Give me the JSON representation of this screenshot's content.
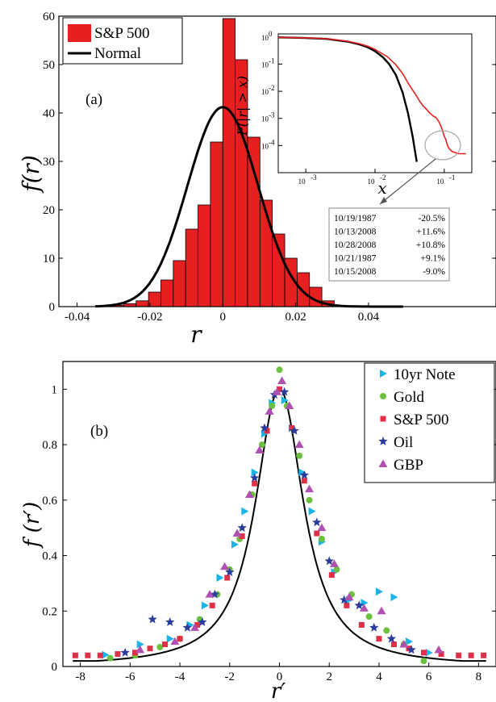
{
  "chart_data": [
    {
      "type": "bar",
      "panel_label": "(a)",
      "xlabel": "r",
      "ylabel": "f(r)",
      "xlim": [
        -0.045,
        0.075
      ],
      "ylim": [
        0,
        60
      ],
      "xticks": [
        "-0.04",
        "-0.02",
        "0",
        "0.02",
        "0.04"
      ],
      "xtick_values": [
        -0.04,
        -0.02,
        0,
        0.02,
        0.04
      ],
      "yticks": [
        "0",
        "10",
        "20",
        "30",
        "40",
        "50",
        "60"
      ],
      "ytick_values": [
        0,
        10,
        20,
        30,
        40,
        50,
        60
      ],
      "bin_width": 0.0034,
      "bins": [
        -0.0306,
        -0.0272,
        -0.0238,
        -0.0204,
        -0.017,
        -0.0136,
        -0.0102,
        -0.0068,
        -0.0034,
        0,
        0.0034,
        0.0068,
        0.0102,
        0.0136,
        0.017,
        0.0204,
        0.0238,
        0.0272
      ],
      "values": [
        0.3,
        0.6,
        1.2,
        3,
        5.5,
        9.5,
        16,
        21,
        34,
        59.5,
        51,
        35,
        22,
        15,
        10,
        7,
        4,
        1.2
      ],
      "normal_curve": {
        "mean": 0,
        "std": 0.0097,
        "peak": 41.2
      },
      "legend": [
        {
          "label": "S&P 500",
          "color": "#e62020",
          "kind": "bar"
        },
        {
          "label": "Normal",
          "color": "#000000",
          "kind": "line"
        }
      ],
      "legend_position": "top-left",
      "colors": {
        "bar": "#e62020",
        "curve": "#000000"
      },
      "inset": {
        "type": "line",
        "xlabel": "x",
        "ylabel": "P(|r| > x)",
        "xscale": "log",
        "yscale": "log",
        "xlim": [
          0.0004,
          0.25
        ],
        "ylim": [
          1e-05,
          1.3
        ],
        "xticks": [
          {
            "base": "10",
            "exp": "-3",
            "value": 0.001
          },
          {
            "base": "10",
            "exp": "-2",
            "value": 0.01
          },
          {
            "base": "10",
            "exp": "-1",
            "value": 0.1
          }
        ],
        "yticks": [
          {
            "base": "10",
            "exp": "0",
            "value": 1
          },
          {
            "base": "10",
            "exp": "-1",
            "value": 0.1
          },
          {
            "base": "10",
            "exp": "-2",
            "value": 0.01
          },
          {
            "base": "10",
            "exp": "-3",
            "value": 0.001
          },
          {
            "base": "10",
            "exp": "-4",
            "value": 0.0001
          }
        ],
        "series": [
          {
            "color": "#000000",
            "x": [
              0.0004,
              0.001,
              0.002,
              0.004,
              0.006,
              0.008,
              0.01,
              0.013,
              0.016,
              0.02,
              0.025,
              0.03,
              0.035,
              0.04,
              0.045
            ],
            "y": [
              0.97,
              0.92,
              0.85,
              0.68,
              0.53,
              0.41,
              0.3,
              0.18,
              0.1,
              0.04,
              0.009,
              0.0015,
              0.00021,
              2.5e-05,
              3e-06
            ]
          },
          {
            "color": "#e62020",
            "x": [
              0.0004,
              0.001,
              0.002,
              0.004,
              0.006,
              0.008,
              0.01,
              0.015,
              0.02,
              0.025,
              0.03,
              0.035,
              0.04,
              0.045,
              0.05,
              0.055,
              0.06,
              0.065,
              0.07,
              0.075,
              0.08,
              0.085,
              0.09,
              0.095,
              0.1,
              0.105,
              0.11,
              0.116,
              0.13,
              0.16,
              0.205
            ],
            "y": [
              0.97,
              0.93,
              0.86,
              0.7,
              0.56,
              0.45,
              0.35,
              0.19,
              0.095,
              0.045,
              0.02,
              0.011,
              0.0065,
              0.004,
              0.0028,
              0.0022,
              0.0017,
              0.0014,
              0.0012,
              0.0011,
              0.0009,
              0.0007,
              0.0005,
              0.00035,
              0.00022,
              0.00017,
              0.00011,
              8e-05,
              6e-05,
              5e-05,
              5e-05
            ]
          }
        ]
      },
      "annotation_table": [
        {
          "date": "10/19/1987",
          "return": "-20.5%"
        },
        {
          "date": "10/13/2008",
          "return": "+11.6%"
        },
        {
          "date": "10/28/2008",
          "return": "+10.8%"
        },
        {
          "date": "10/21/1987",
          "return": "+9.1%"
        },
        {
          "date": "10/15/2008",
          "return": "-9.0%"
        }
      ]
    },
    {
      "type": "scatter",
      "panel_label": "(b)",
      "xlabel": "r′",
      "ylabel": "f (r′)",
      "xlim": [
        -8.7,
        8.7
      ],
      "ylim": [
        0,
        1.1
      ],
      "xticks": [
        "-8",
        "-6",
        "-4",
        "-2",
        "0",
        "2",
        "4",
        "6",
        "8"
      ],
      "xtick_values": [
        -8,
        -6,
        -4,
        -2,
        0,
        2,
        4,
        6,
        8
      ],
      "yticks": [
        "0",
        "0.2",
        "0.4",
        "0.6",
        "0.8",
        "1"
      ],
      "ytick_values": [
        0,
        0.2,
        0.4,
        0.6,
        0.8,
        1
      ],
      "legend_position": "top-right",
      "fit_curve": {
        "color": "#000000"
      },
      "series": [
        {
          "name": "10yr Note",
          "color": "#1ab4e8",
          "marker": "triangle-right",
          "x": [
            -7,
            -5.6,
            -4.4,
            -3.6,
            -3,
            -2.4,
            -1.8,
            -1.4,
            -1,
            -0.6,
            -0.3,
            0.2,
            0.5,
            0.9,
            1.3,
            1.7,
            2.2,
            2.8,
            3.4,
            4,
            4.6,
            5.2,
            6
          ],
          "y": [
            0.042,
            0.08,
            0.1,
            0.15,
            0.22,
            0.32,
            0.44,
            0.56,
            0.7,
            0.84,
            0.95,
            0.96,
            0.86,
            0.7,
            0.56,
            0.45,
            0.34,
            0.24,
            0.23,
            0.27,
            0.25,
            0.09,
            0.05
          ]
        },
        {
          "name": "Gold",
          "color": "#6cc040",
          "marker": "circle",
          "x": [
            -6.8,
            -5.8,
            -4.8,
            -4,
            -3.2,
            -2.5,
            -2,
            -1.6,
            -1.1,
            -0.7,
            -0.3,
            0,
            0.3,
            0.8,
            1.2,
            1.7,
            2.3,
            2.9,
            3.6,
            4.3,
            5,
            5.8
          ],
          "y": [
            0.03,
            0.04,
            0.07,
            0.1,
            0.17,
            0.26,
            0.35,
            0.46,
            0.62,
            0.8,
            0.94,
            1.07,
            0.94,
            0.76,
            0.6,
            0.46,
            0.35,
            0.26,
            0.18,
            0.13,
            0.08,
            0.02
          ]
        },
        {
          "name": "S&P 500",
          "color": "#e03048",
          "marker": "square",
          "x": [
            -8.2,
            -7.7,
            -7.2,
            -6.5,
            -5.8,
            -5.2,
            -4.6,
            -4,
            -3.3,
            -2.7,
            -2.1,
            -1.5,
            -1,
            -0.5,
            0,
            0.5,
            1,
            1.5,
            2.1,
            2.7,
            3.3,
            4,
            4.6,
            5.2,
            5.8,
            6.5,
            7.2,
            7.7,
            8.2
          ],
          "y": [
            0.04,
            0.04,
            0.04,
            0.045,
            0.05,
            0.065,
            0.08,
            0.1,
            0.15,
            0.22,
            0.32,
            0.47,
            0.66,
            0.85,
            1.0,
            0.86,
            0.67,
            0.48,
            0.33,
            0.22,
            0.15,
            0.1,
            0.08,
            0.065,
            0.05,
            0.045,
            0.04,
            0.04,
            0.04
          ]
        },
        {
          "name": "Oil",
          "color": "#2a3c9c",
          "marker": "star",
          "x": [
            -6.2,
            -5.1,
            -4.4,
            -3.7,
            -3.1,
            -2.6,
            -2,
            -1.5,
            -1,
            -0.6,
            -0.2,
            0.2,
            0.6,
            1,
            1.5,
            2,
            2.6,
            3.2,
            3.8,
            4.5,
            5.3
          ],
          "y": [
            0.05,
            0.17,
            0.16,
            0.14,
            0.16,
            0.26,
            0.34,
            0.5,
            0.68,
            0.86,
            0.98,
            0.99,
            0.85,
            0.69,
            0.52,
            0.38,
            0.24,
            0.22,
            0.14,
            0.1,
            0.06
          ]
        },
        {
          "name": "GBP",
          "color": "#b050b0",
          "marker": "triangle-up",
          "x": [
            -5.6,
            -4.2,
            -3.4,
            -2.8,
            -2.2,
            -1.7,
            -1.2,
            -0.8,
            -0.4,
            -0.1,
            0.1,
            0.4,
            0.8,
            1.2,
            1.7,
            2.2,
            2.8,
            3.4,
            4.1,
            5,
            6.4
          ],
          "y": [
            0.06,
            0.09,
            0.14,
            0.26,
            0.36,
            0.48,
            0.62,
            0.78,
            0.92,
            0.99,
            1.03,
            0.94,
            0.8,
            0.64,
            0.5,
            0.37,
            0.25,
            0.21,
            0.2,
            0.08,
            0.06
          ]
        }
      ]
    }
  ]
}
